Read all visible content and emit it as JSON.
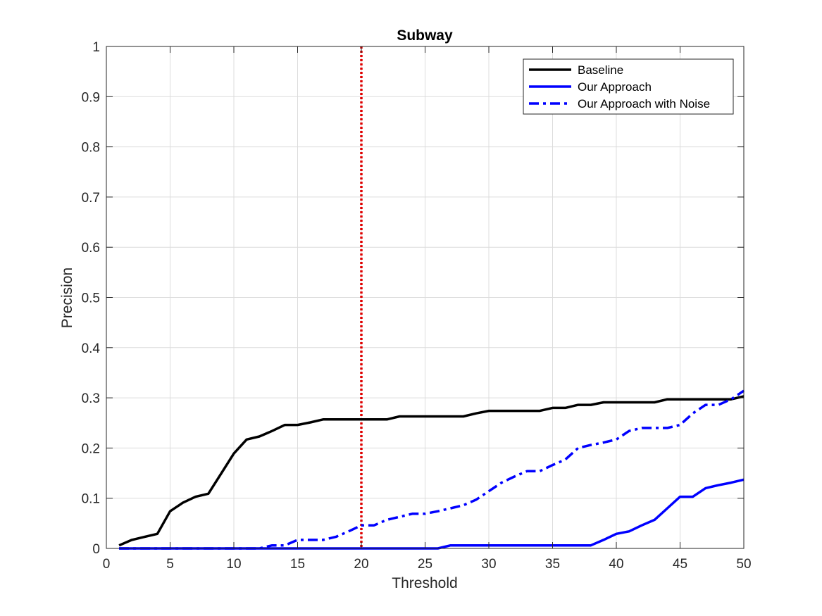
{
  "chart_data": {
    "type": "line",
    "title": "Subway",
    "xlabel": "Threshold",
    "ylabel": "Precision",
    "xlim": [
      0,
      50
    ],
    "ylim": [
      0,
      1
    ],
    "xticks": [
      0,
      5,
      10,
      15,
      20,
      25,
      30,
      35,
      40,
      45,
      50
    ],
    "yticks": [
      0,
      0.1,
      0.2,
      0.3,
      0.4,
      0.5,
      0.6,
      0.7,
      0.8,
      0.9,
      1
    ],
    "ytick_labels": [
      "0",
      "0.1",
      "0.2",
      "0.3",
      "0.4",
      "0.5",
      "0.6",
      "0.7",
      "0.8",
      "0.9",
      "1"
    ],
    "grid": true,
    "legend_position": "top-right",
    "x": [
      1,
      2,
      3,
      4,
      5,
      6,
      7,
      8,
      9,
      10,
      11,
      12,
      13,
      14,
      15,
      16,
      17,
      18,
      19,
      20,
      21,
      22,
      23,
      24,
      25,
      26,
      27,
      28,
      29,
      30,
      31,
      32,
      33,
      34,
      35,
      36,
      37,
      38,
      39,
      40,
      41,
      42,
      43,
      44,
      45,
      46,
      47,
      48,
      49,
      50
    ],
    "series": [
      {
        "name": "Baseline",
        "color": "#000000",
        "style": "solid",
        "values": [
          0.006,
          0.017,
          0.023,
          0.029,
          0.074,
          0.091,
          0.103,
          0.109,
          0.149,
          0.189,
          0.217,
          0.223,
          0.234,
          0.246,
          0.246,
          0.251,
          0.257,
          0.257,
          0.257,
          0.257,
          0.257,
          0.257,
          0.263,
          0.263,
          0.263,
          0.263,
          0.263,
          0.263,
          0.269,
          0.274,
          0.274,
          0.274,
          0.274,
          0.274,
          0.28,
          0.28,
          0.286,
          0.286,
          0.291,
          0.291,
          0.291,
          0.291,
          0.291,
          0.297,
          0.297,
          0.297,
          0.297,
          0.297,
          0.297,
          0.303
        ]
      },
      {
        "name": "Our Approach",
        "color": "#0000ff",
        "style": "solid",
        "values": [
          0,
          0,
          0,
          0,
          0,
          0,
          0,
          0,
          0,
          0,
          0,
          0,
          0,
          0,
          0,
          0,
          0,
          0,
          0,
          0,
          0,
          0,
          0,
          0,
          0,
          0,
          0.006,
          0.006,
          0.006,
          0.006,
          0.006,
          0.006,
          0.006,
          0.006,
          0.006,
          0.006,
          0.006,
          0.006,
          0.017,
          0.029,
          0.034,
          0.046,
          0.057,
          0.08,
          0.103,
          0.103,
          0.12,
          0.126,
          0.131,
          0.137
        ]
      },
      {
        "name": "Our Approach with Noise",
        "color": "#0000ff",
        "style": "dash-dot",
        "values": [
          0,
          0,
          0,
          0,
          0,
          0,
          0,
          0,
          0,
          0,
          0,
          0,
          0.006,
          0.006,
          0.017,
          0.017,
          0.017,
          0.023,
          0.034,
          0.046,
          0.046,
          0.057,
          0.063,
          0.069,
          0.069,
          0.074,
          0.08,
          0.086,
          0.097,
          0.114,
          0.131,
          0.143,
          0.154,
          0.154,
          0.166,
          0.177,
          0.2,
          0.206,
          0.211,
          0.217,
          0.234,
          0.24,
          0.24,
          0.24,
          0.246,
          0.269,
          0.286,
          0.286,
          0.297,
          0.314
        ]
      }
    ],
    "annotations": [
      {
        "type": "vertical-line",
        "x": 20,
        "color": "#e00000",
        "style": "dotted"
      }
    ]
  }
}
